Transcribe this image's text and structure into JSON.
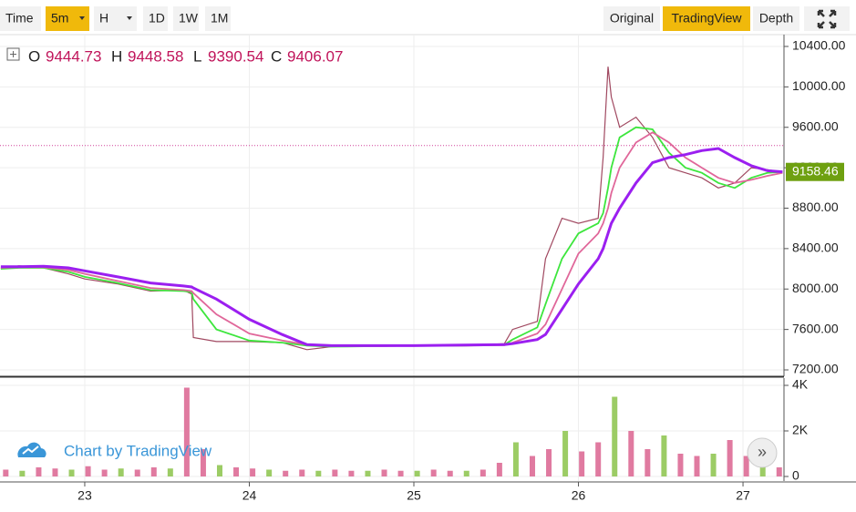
{
  "toolbar": {
    "left": [
      "Time",
      "5m",
      "H",
      "1D",
      "1W",
      "1M"
    ],
    "right": [
      "Original",
      "TradingView",
      "Depth"
    ]
  },
  "ohlc": {
    "labels": [
      "O",
      "H",
      "L",
      "C"
    ],
    "values": [
      "9444.73",
      "9448.58",
      "9390.54",
      "9406.07"
    ]
  },
  "watermark": "Chart by TradingView",
  "scroll_button": "»",
  "chart_data": [
    {
      "type": "line",
      "x": [
        22.49,
        22.6,
        22.75,
        22.9,
        23.0,
        23.2,
        23.4,
        23.6,
        23.65,
        23.66,
        23.8,
        24.0,
        24.2,
        24.35,
        24.5,
        24.8,
        25.0,
        25.3,
        25.55,
        25.6,
        25.75,
        25.8,
        25.9,
        26.0,
        26.12,
        26.15,
        26.18,
        26.2,
        26.25,
        26.35,
        26.45,
        26.55,
        26.65,
        26.75,
        26.85,
        26.95,
        27.05,
        27.15,
        27.24
      ],
      "series": [
        {
          "color": "#a04860",
          "values": [
            8200,
            8230,
            8210,
            8150,
            8100,
            8050,
            7980,
            7990,
            7950,
            7520,
            7480,
            7480,
            7470,
            7400,
            7430,
            7440,
            7440,
            7440,
            7460,
            7600,
            7680,
            8300,
            8700,
            8650,
            8700,
            9300,
            10200,
            9900,
            9600,
            9700,
            9500,
            9200,
            9150,
            9100,
            9000,
            9050,
            9200,
            9180,
            9158.46
          ]
        },
        {
          "color": "#3de63d",
          "values": [
            8200,
            8210,
            8210,
            8170,
            8120,
            8060,
            7990,
            7980,
            7970,
            7900,
            7600,
            7490,
            7470,
            7440,
            7430,
            7435,
            7440,
            7440,
            7450,
            7500,
            7620,
            7850,
            8300,
            8550,
            8650,
            8750,
            9000,
            9200,
            9500,
            9600,
            9580,
            9350,
            9200,
            9150,
            9050,
            9000,
            9100,
            9150,
            9160
          ]
        },
        {
          "color": "#e0679a",
          "values": [
            8210,
            8215,
            8215,
            8190,
            8150,
            8080,
            8010,
            7990,
            7980,
            7960,
            7750,
            7560,
            7490,
            7450,
            7440,
            7435,
            7440,
            7440,
            7445,
            7470,
            7560,
            7650,
            8000,
            8350,
            8550,
            8650,
            8800,
            8950,
            9200,
            9450,
            9550,
            9450,
            9300,
            9200,
            9100,
            9050,
            9080,
            9120,
            9150
          ]
        },
        {
          "color": "#9b1ff0",
          "values": [
            8220,
            8220,
            8225,
            8210,
            8180,
            8120,
            8060,
            8030,
            8020,
            8010,
            7900,
            7700,
            7550,
            7450,
            7440,
            7440,
            7440,
            7445,
            7450,
            7460,
            7500,
            7550,
            7800,
            8050,
            8300,
            8400,
            8550,
            8650,
            8800,
            9050,
            9250,
            9300,
            9330,
            9370,
            9390,
            9300,
            9220,
            9170,
            9160
          ]
        }
      ],
      "xlim": [
        22.485,
        27.249
      ],
      "xticks": [
        23,
        24,
        25,
        26,
        27
      ],
      "ylim": [
        7137,
        10517
      ],
      "yticks": [
        {
          "value": 7200,
          "label": "7200.00"
        },
        {
          "value": 7600,
          "label": "7600.00"
        },
        {
          "value": 8000,
          "label": "8000.00"
        },
        {
          "value": 8400,
          "label": "8400.00"
        },
        {
          "value": 8800,
          "label": "8800.00"
        },
        {
          "value": 9200,
          "label": "9200.00"
        },
        {
          "value": 9600,
          "label": "9600.00"
        },
        {
          "value": 10000,
          "label": "10000.00"
        },
        {
          "value": 10400,
          "label": "10400.00"
        }
      ],
      "price_line": 9420,
      "grid": true
    },
    {
      "type": "bar",
      "color": "#e07aa0",
      "x": [
        22.52,
        22.62,
        22.72,
        22.82,
        22.92,
        23.02,
        23.12,
        23.22,
        23.32,
        23.42,
        23.52,
        23.62,
        23.72,
        23.82,
        23.92,
        24.02,
        24.12,
        24.22,
        24.32,
        24.42,
        24.52,
        24.62,
        24.72,
        24.82,
        24.92,
        25.02,
        25.12,
        25.22,
        25.32,
        25.42,
        25.52,
        25.62,
        25.72,
        25.82,
        25.92,
        26.02,
        26.12,
        26.22,
        26.32,
        26.42,
        26.52,
        26.62,
        26.72,
        26.82,
        26.92,
        27.02,
        27.12,
        27.22
      ],
      "values": [
        300,
        250,
        400,
        350,
        300,
        450,
        300,
        350,
        300,
        400,
        350,
        3900,
        1200,
        500,
        400,
        350,
        300,
        250,
        300,
        250,
        300,
        250,
        250,
        300,
        250,
        250,
        300,
        250,
        250,
        300,
        600,
        1500,
        900,
        1200,
        2000,
        1100,
        1500,
        3500,
        2000,
        1200,
        1800,
        1000,
        900,
        1000,
        1600,
        900,
        700,
        400
      ],
      "xlim": [
        22.485,
        27.249
      ],
      "ylim": [
        -200,
        4320
      ],
      "yticks": [
        0,
        {
          "value": 2000,
          "label": "2K"
        },
        {
          "value": 4000,
          "label": "4K"
        }
      ],
      "grid": true
    }
  ]
}
